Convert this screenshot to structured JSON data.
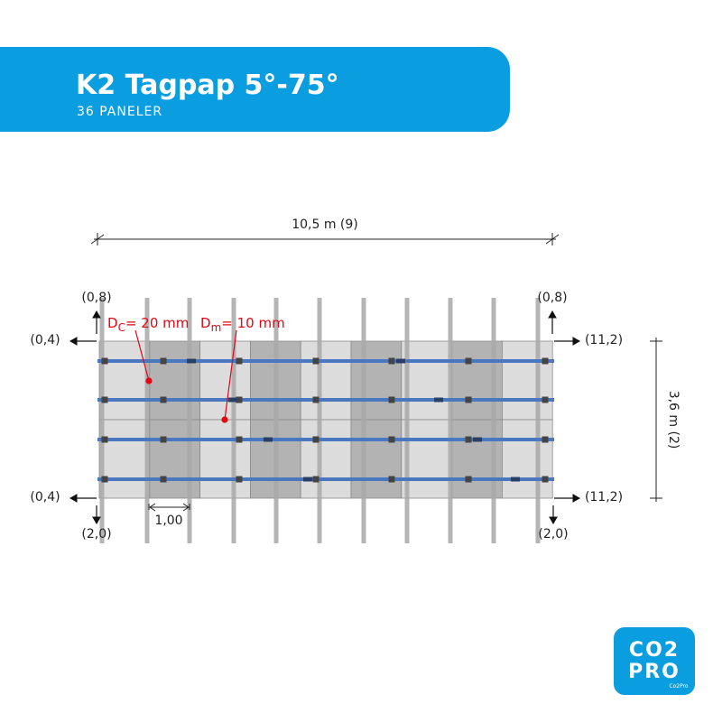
{
  "header": {
    "title": "K2 Tagpap 5°-75°",
    "subtitle": "36 PANELER"
  },
  "dimensions": {
    "width": "10,5 m (9)",
    "height": "3,6 m (2)",
    "spacing": "1,00"
  },
  "edge_distances": {
    "top_left": "(0,8)",
    "top_right": "(0,8)",
    "left_top": "(0,4)",
    "left_bottom": "(0,4)",
    "right_top": "(11,2)",
    "right_bottom": "(11,2)",
    "bottom_left": "(2,0)",
    "bottom_right": "(2,0)"
  },
  "gaps": [
    {
      "symbol": "D",
      "subscript": "C",
      "text": "= 20 mm"
    },
    {
      "symbol": "D",
      "subscript": "m",
      "text": "= 10 mm"
    }
  ],
  "logo": {
    "line1": "CO2",
    "line2": "PRO",
    "caption": "Co2Pro"
  }
}
